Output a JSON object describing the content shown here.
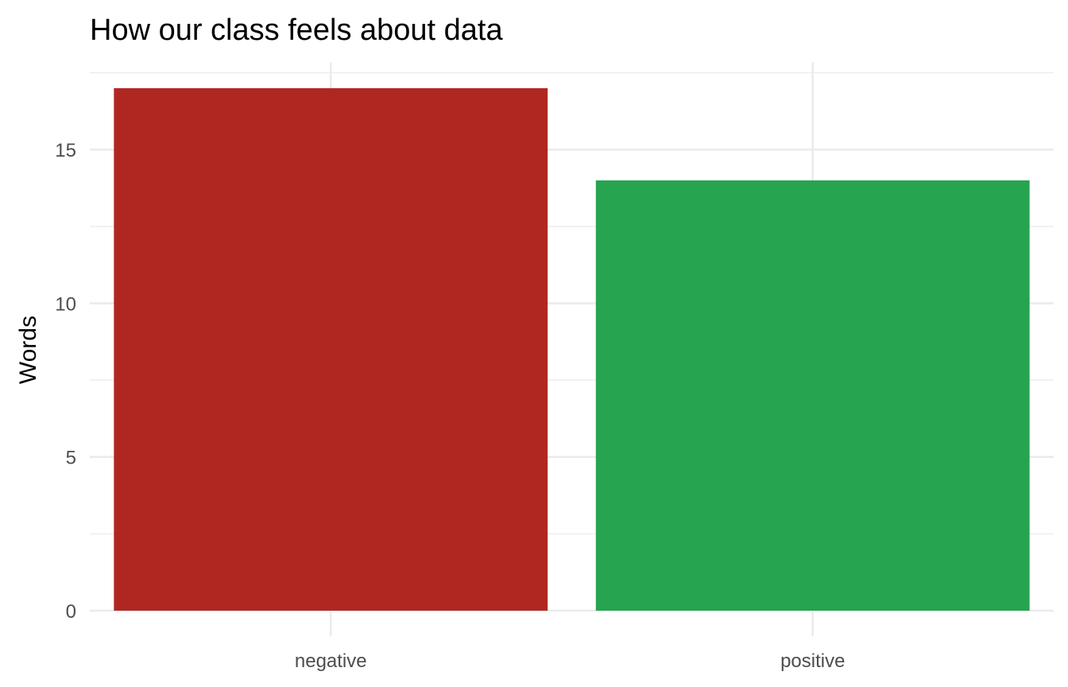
{
  "chart_data": {
    "type": "bar",
    "title": "How our class feels about data",
    "xlabel": "",
    "ylabel": "Words",
    "categories": [
      "negative",
      "positive"
    ],
    "values": [
      17,
      14
    ],
    "colors": [
      "#b02722",
      "#26a450"
    ],
    "ylim": [
      0,
      17.85
    ],
    "y_ticks": [
      0,
      5,
      10,
      15
    ],
    "y_minor_ticks": [
      2.5,
      7.5,
      12.5,
      17.5
    ],
    "grid": true,
    "legend": "none",
    "background": "#ffffff",
    "grid_color": "#ebebeb"
  }
}
